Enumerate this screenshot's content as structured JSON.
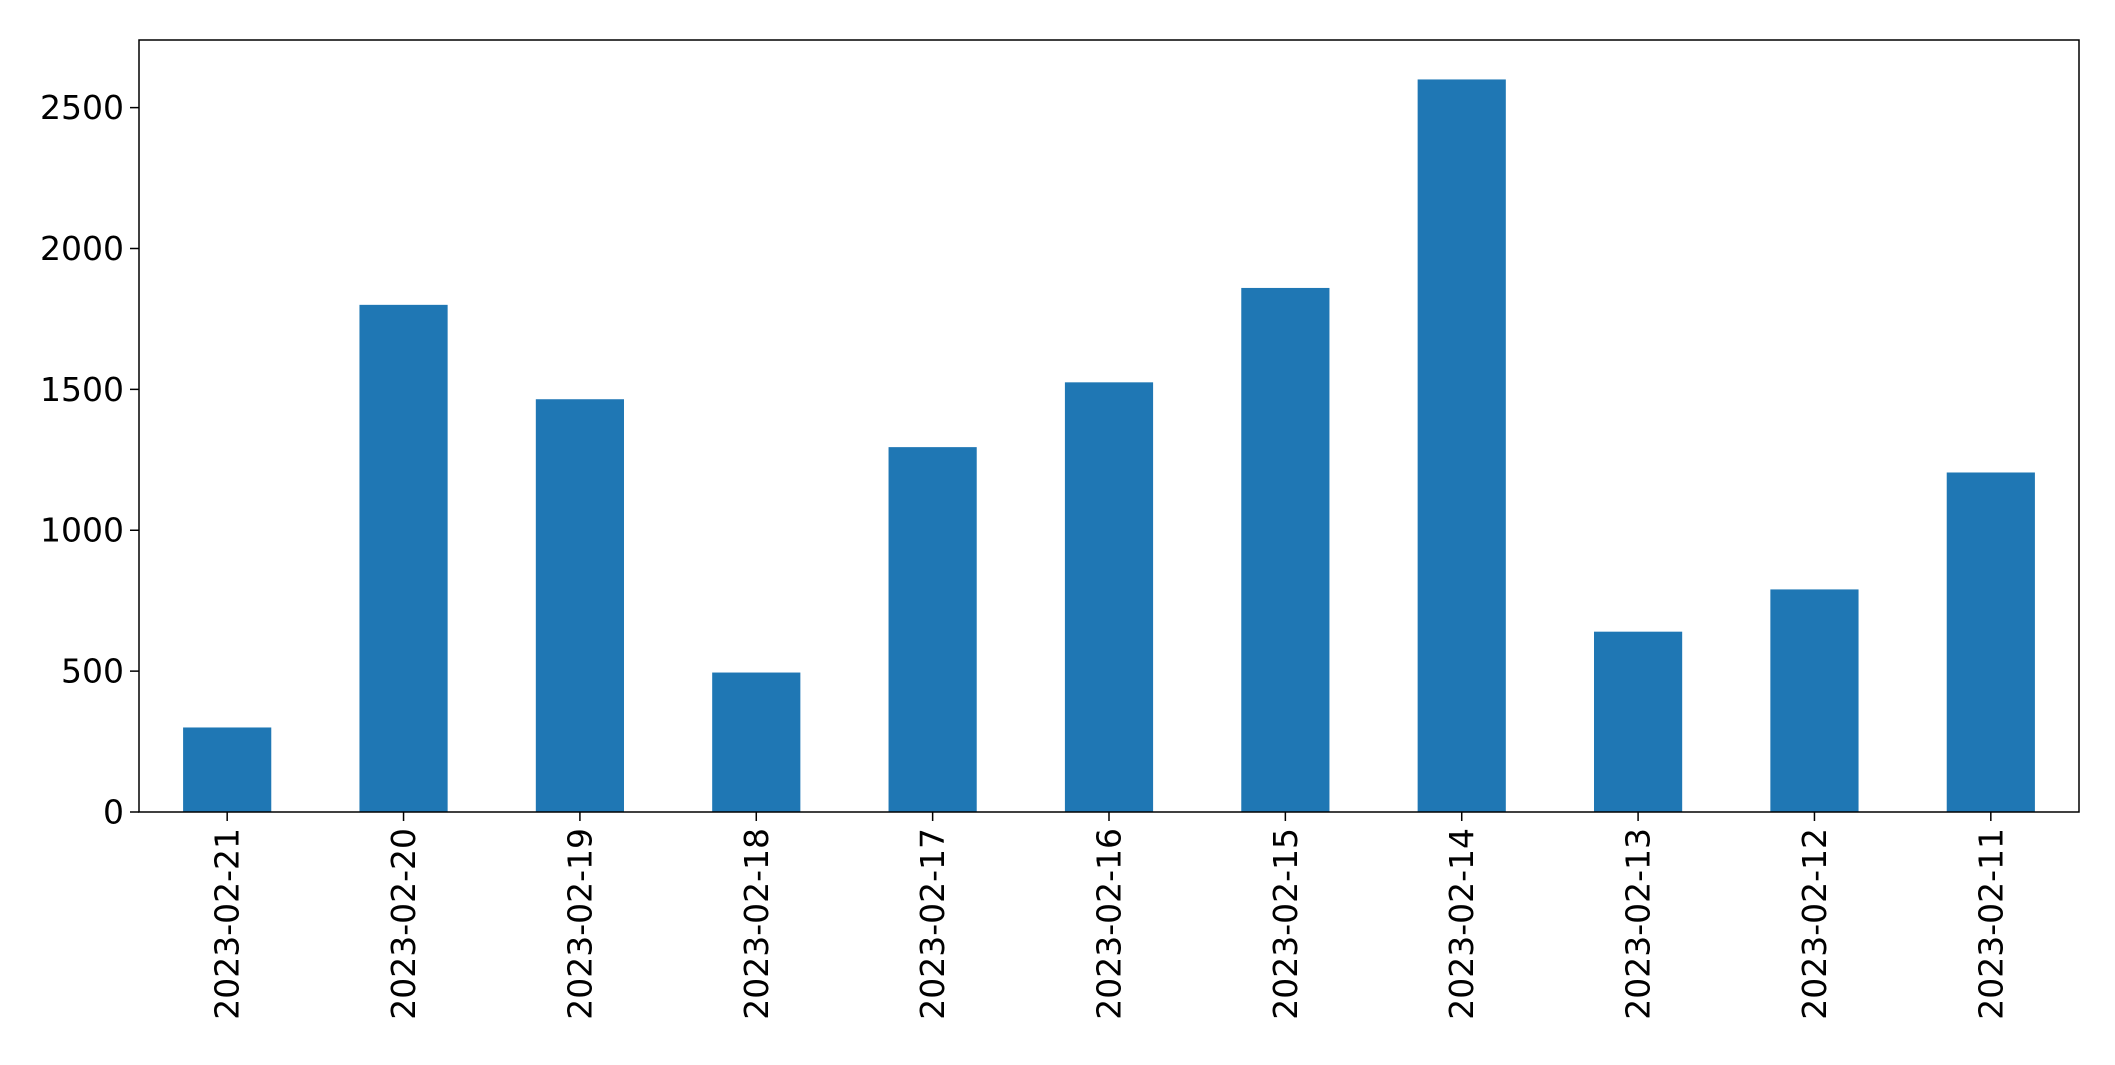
{
  "chart_data": {
    "type": "bar",
    "title": "",
    "xlabel": "",
    "ylabel": "",
    "categories": [
      "2023-02-21",
      "2023-02-20",
      "2023-02-19",
      "2023-02-18",
      "2023-02-17",
      "2023-02-16",
      "2023-02-15",
      "2023-02-14",
      "2023-02-13",
      "2023-02-12",
      "2023-02-11"
    ],
    "series": [
      {
        "values": [
          300,
          1800,
          1465,
          495,
          1295,
          1525,
          1860,
          2600,
          640,
          790,
          1205
        ]
      }
    ],
    "ylim": [
      0,
      2740
    ],
    "yticks": [
      0,
      500,
      1000,
      1500,
      2000,
      2500
    ],
    "grid": false,
    "legend": "none",
    "bar_color": "#1f77b4"
  }
}
